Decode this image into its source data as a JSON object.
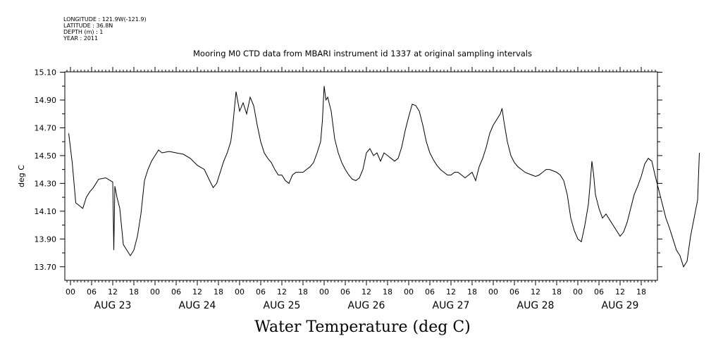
{
  "metadata": {
    "longitude": "LONGITUDE : 121.9W(-121.9)",
    "latitude": "LATITUDE : 36.8N",
    "depth": "DEPTH (m) : 1",
    "year": "YEAR : 2011"
  },
  "chart_data": {
    "type": "line",
    "title": "Mooring M0 CTD data from MBARI instrument id 1337 at original sampling intervals",
    "xlabel": "Water Temperature (deg C)",
    "ylabel": "deg C",
    "ylim": [
      13.6,
      15.1
    ],
    "y_ticks": [
      "15.10",
      "14.90",
      "14.70",
      "14.50",
      "14.30",
      "14.10",
      "13.90",
      "13.70"
    ],
    "x_hour_ticks": [
      "00",
      "06",
      "12",
      "18",
      "00",
      "06",
      "12",
      "18",
      "00",
      "06",
      "12",
      "18",
      "00",
      "06",
      "12",
      "18",
      "00",
      "06",
      "12",
      "18",
      "00",
      "06",
      "12",
      "18",
      "00",
      "06",
      "12",
      "18"
    ],
    "x_day_labels": [
      "AUG 23",
      "AUG 24",
      "AUG 25",
      "AUG 26",
      "AUG 27",
      "AUG 28",
      "AUG 29"
    ],
    "xlim_hours": [
      -1,
      167
    ],
    "series": [
      {
        "points": [
          [
            -0.5,
            14.66
          ],
          [
            0.5,
            14.45
          ],
          [
            1.5,
            14.16
          ],
          [
            2.5,
            14.14
          ],
          [
            3.5,
            14.12
          ],
          [
            4.5,
            14.2
          ],
          [
            5.5,
            14.24
          ],
          [
            6.5,
            14.27
          ],
          [
            8,
            14.33
          ],
          [
            10,
            14.34
          ],
          [
            12,
            14.31
          ],
          [
            12.3,
            13.82
          ],
          [
            12.6,
            14.28
          ],
          [
            13.2,
            14.2
          ],
          [
            14,
            14.12
          ],
          [
            15,
            13.86
          ],
          [
            16,
            13.82
          ],
          [
            17,
            13.78
          ],
          [
            18,
            13.82
          ],
          [
            19,
            13.92
          ],
          [
            20,
            14.08
          ],
          [
            21,
            14.32
          ],
          [
            22,
            14.4
          ],
          [
            23,
            14.46
          ],
          [
            24,
            14.5
          ],
          [
            25,
            14.54
          ],
          [
            26,
            14.52
          ],
          [
            28,
            14.53
          ],
          [
            30,
            14.52
          ],
          [
            32,
            14.51
          ],
          [
            34,
            14.48
          ],
          [
            36,
            14.43
          ],
          [
            38,
            14.4
          ],
          [
            39.5,
            14.32
          ],
          [
            40.5,
            14.27
          ],
          [
            41.5,
            14.3
          ],
          [
            42.5,
            14.38
          ],
          [
            43.5,
            14.46
          ],
          [
            44.5,
            14.52
          ],
          [
            45.5,
            14.6
          ],
          [
            46,
            14.7
          ],
          [
            47,
            14.96
          ],
          [
            48,
            14.82
          ],
          [
            49,
            14.88
          ],
          [
            50,
            14.8
          ],
          [
            51,
            14.92
          ],
          [
            52,
            14.86
          ],
          [
            53,
            14.72
          ],
          [
            54,
            14.6
          ],
          [
            55,
            14.52
          ],
          [
            56,
            14.48
          ],
          [
            57,
            14.45
          ],
          [
            58,
            14.4
          ],
          [
            59,
            14.36
          ],
          [
            60,
            14.36
          ],
          [
            61,
            14.32
          ],
          [
            62,
            14.3
          ],
          [
            63,
            14.36
          ],
          [
            64,
            14.38
          ],
          [
            66,
            14.38
          ],
          [
            67,
            14.4
          ],
          [
            68,
            14.42
          ],
          [
            69,
            14.45
          ],
          [
            70,
            14.52
          ],
          [
            71,
            14.6
          ],
          [
            71.5,
            14.75
          ],
          [
            72,
            15.0
          ],
          [
            72.5,
            14.9
          ],
          [
            73,
            14.92
          ],
          [
            74,
            14.82
          ],
          [
            75,
            14.62
          ],
          [
            76,
            14.52
          ],
          [
            77,
            14.45
          ],
          [
            78,
            14.4
          ],
          [
            79,
            14.36
          ],
          [
            80,
            14.33
          ],
          [
            81,
            14.32
          ],
          [
            82,
            14.34
          ],
          [
            83,
            14.4
          ],
          [
            84,
            14.52
          ],
          [
            85,
            14.55
          ],
          [
            86,
            14.5
          ],
          [
            87,
            14.52
          ],
          [
            88,
            14.46
          ],
          [
            89,
            14.52
          ],
          [
            90,
            14.5
          ],
          [
            91,
            14.48
          ],
          [
            92,
            14.46
          ],
          [
            93,
            14.48
          ],
          [
            94,
            14.56
          ],
          [
            95,
            14.68
          ],
          [
            96,
            14.78
          ],
          [
            97,
            14.87
          ],
          [
            98,
            14.86
          ],
          [
            99,
            14.82
          ],
          [
            100,
            14.72
          ],
          [
            101,
            14.6
          ],
          [
            102,
            14.52
          ],
          [
            103,
            14.47
          ],
          [
            104,
            14.43
          ],
          [
            105,
            14.4
          ],
          [
            106,
            14.38
          ],
          [
            107,
            14.36
          ],
          [
            108,
            14.36
          ],
          [
            109,
            14.38
          ],
          [
            110,
            14.38
          ],
          [
            111,
            14.36
          ],
          [
            112,
            14.34
          ],
          [
            113,
            14.36
          ],
          [
            114,
            14.38
          ],
          [
            115,
            14.32
          ],
          [
            116,
            14.42
          ],
          [
            117,
            14.48
          ],
          [
            118,
            14.56
          ],
          [
            119,
            14.66
          ],
          [
            120,
            14.72
          ],
          [
            121,
            14.76
          ],
          [
            122,
            14.8
          ],
          [
            122.5,
            14.84
          ],
          [
            123,
            14.75
          ],
          [
            124,
            14.6
          ],
          [
            125,
            14.5
          ],
          [
            126,
            14.45
          ],
          [
            127,
            14.42
          ],
          [
            128,
            14.4
          ],
          [
            129,
            14.38
          ],
          [
            130,
            14.37
          ],
          [
            131,
            14.36
          ],
          [
            132,
            14.35
          ],
          [
            133,
            14.36
          ],
          [
            134,
            14.38
          ],
          [
            135,
            14.4
          ],
          [
            136,
            14.4
          ],
          [
            137,
            14.39
          ],
          [
            138,
            14.38
          ],
          [
            139,
            14.36
          ],
          [
            140,
            14.32
          ],
          [
            141,
            14.22
          ],
          [
            142,
            14.05
          ],
          [
            143,
            13.96
          ],
          [
            144,
            13.9
          ],
          [
            145,
            13.88
          ],
          [
            146,
            14.0
          ],
          [
            147,
            14.15
          ],
          [
            147.5,
            14.3
          ],
          [
            148,
            14.46
          ],
          [
            148.5,
            14.36
          ],
          [
            149,
            14.22
          ],
          [
            150,
            14.12
          ],
          [
            151,
            14.05
          ],
          [
            152,
            14.08
          ],
          [
            153,
            14.04
          ],
          [
            154,
            14.0
          ],
          [
            155,
            13.96
          ],
          [
            156,
            13.92
          ],
          [
            157,
            13.95
          ],
          [
            158,
            14.02
          ],
          [
            159,
            14.12
          ],
          [
            160,
            14.22
          ],
          [
            161,
            14.28
          ],
          [
            162,
            14.35
          ],
          [
            163,
            14.44
          ],
          [
            164,
            14.48
          ],
          [
            165,
            14.46
          ],
          [
            166,
            14.35
          ],
          [
            167,
            14.25
          ],
          [
            168,
            14.15
          ],
          [
            169,
            14.05
          ],
          [
            170,
            13.98
          ],
          [
            171,
            13.9
          ],
          [
            172,
            13.82
          ],
          [
            173,
            13.78
          ],
          [
            174,
            13.7
          ],
          [
            175,
            13.74
          ],
          [
            176,
            13.92
          ],
          [
            177,
            14.05
          ],
          [
            178,
            14.18
          ],
          [
            178.5,
            14.52
          ]
        ]
      }
    ],
    "grid": false,
    "legend": "none"
  }
}
